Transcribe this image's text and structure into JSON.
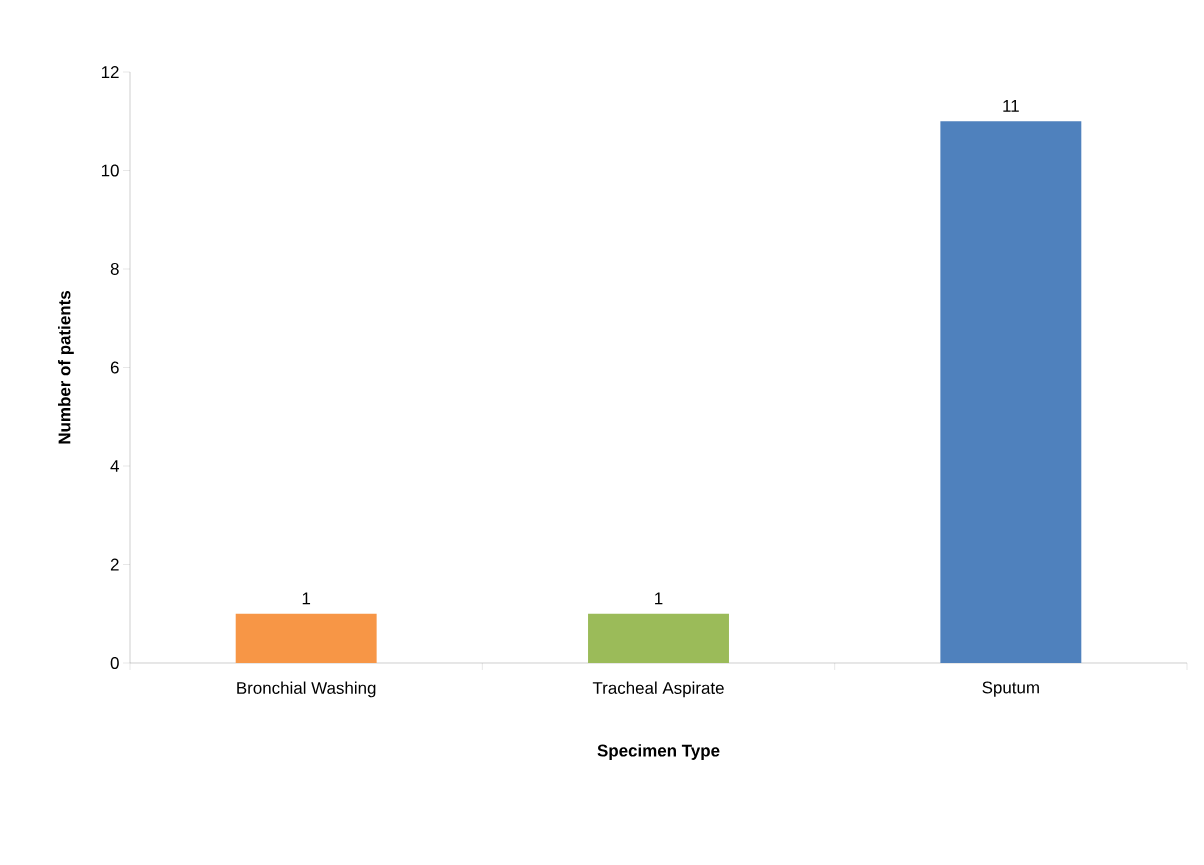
{
  "chart_data": {
    "type": "bar",
    "xlabel": "Specimen Type",
    "ylabel": "Number of patients",
    "categories": [
      "Bronchial Washing",
      "Tracheal Aspirate",
      "Sputum"
    ],
    "values": [
      1,
      1,
      11
    ],
    "colors": [
      "#f79646",
      "#9bbb59",
      "#4f81bd"
    ],
    "ylim": [
      0,
      12
    ],
    "yticks": [
      0,
      2,
      4,
      6,
      8,
      10,
      12
    ],
    "data_labels": true,
    "grid": false
  }
}
